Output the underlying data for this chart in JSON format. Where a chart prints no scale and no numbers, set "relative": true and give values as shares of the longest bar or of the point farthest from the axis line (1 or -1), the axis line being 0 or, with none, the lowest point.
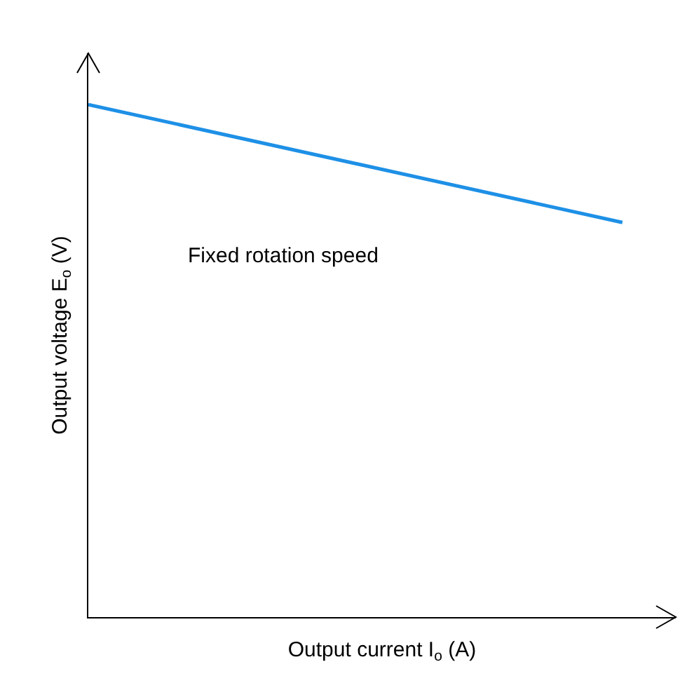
{
  "chart_data": {
    "type": "line",
    "relative": true,
    "categories": [
      null,
      null
    ],
    "series": [
      {
        "color": "#1e90e6",
        "values": [
          1,
          0.77
        ]
      }
    ],
    "xlabel": "Output current I$_{o}$ (A)",
    "ylabel": "Output voltage E$_{o}$ (V)",
    "annotations": [
      "Fixed rotation speed"
    ],
    "marker": "none",
    "line_style": "solid"
  }
}
